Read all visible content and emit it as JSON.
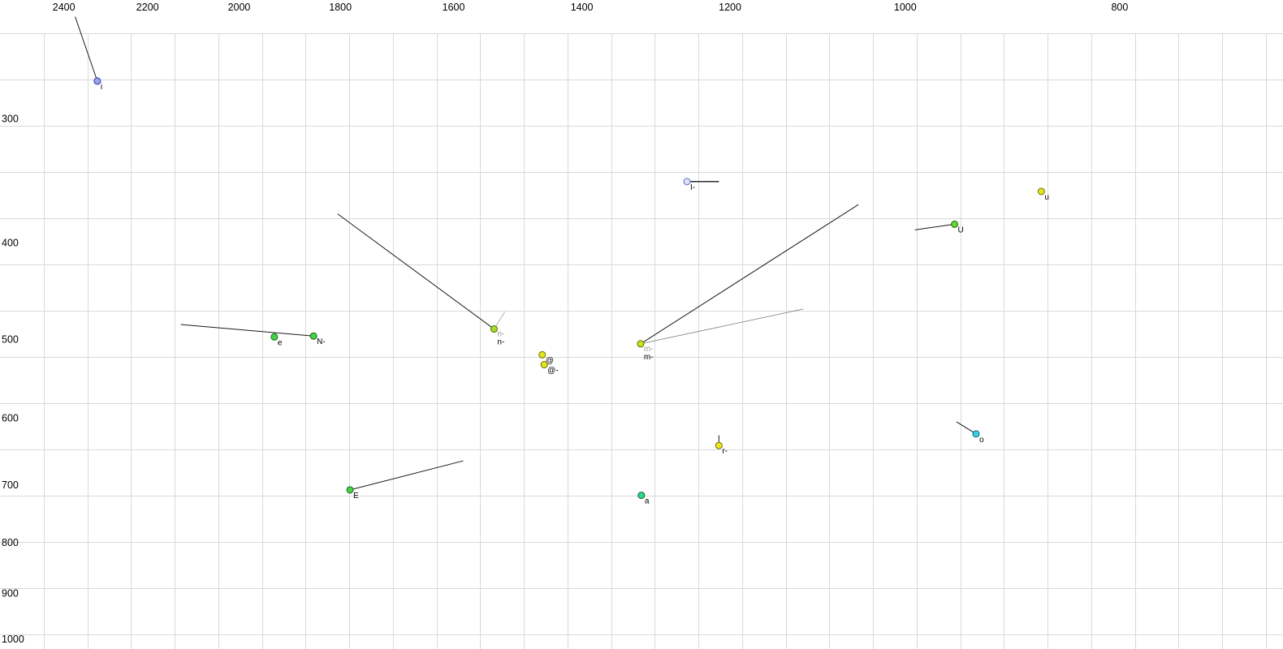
{
  "chart_data": {
    "type": "scatter",
    "title": "",
    "xlabel": "",
    "ylabel": "",
    "legend": false,
    "grid": true,
    "axes": {
      "x_scale": "log",
      "x_reversed": true,
      "x_position": "top",
      "x_range": [
        2565,
        675
      ],
      "y_scale": "log",
      "y_position": "left",
      "y_range": [
        228,
        1023
      ]
    },
    "x_ticks": [
      2400,
      2200,
      2000,
      1800,
      1600,
      1400,
      1200,
      1000,
      800
    ],
    "y_ticks": [
      300,
      400,
      500,
      600,
      700,
      800,
      900,
      1000
    ],
    "points": [
      {
        "label": "i",
        "f2": 2318,
        "f1": 275,
        "fill": "#9aa6ee",
        "stroke": "#2a35a0"
      },
      {
        "label": "e",
        "f2": 1928,
        "f1": 497,
        "fill": "#44d444",
        "stroke": "#17641f"
      },
      {
        "label": "N-",
        "f2": 1851,
        "f1": 496,
        "fill": "#44d444",
        "stroke": "#17641f"
      },
      {
        "label": "E",
        "f2": 1782,
        "f1": 708,
        "fill": "#44d444",
        "stroke": "#17641f"
      },
      {
        "label": "n-",
        "f2": 1534,
        "f1": 488,
        "fill": "#a6dc28",
        "stroke": "#4e6e10",
        "ghost": "n-"
      },
      {
        "label": "@",
        "f2": 1459,
        "f1": 518,
        "fill": "#e4e41c",
        "stroke": "#6e6e0c"
      },
      {
        "label": "@-",
        "f2": 1456,
        "f1": 530,
        "fill": "#e4e41c",
        "stroke": "#6e6e0c"
      },
      {
        "label": "m-",
        "f2": 1317,
        "f1": 505,
        "fill": "#cfe018",
        "stroke": "#5e680a",
        "ghost": "m-"
      },
      {
        "label": "I-",
        "f2": 1255,
        "f1": 347,
        "fill": "#dfe3f8",
        "stroke": "#6470c8"
      },
      {
        "label": "a",
        "f2": 1316,
        "f1": 717,
        "fill": "#2fd689",
        "stroke": "#0e5e3a"
      },
      {
        "label": "r-",
        "f2": 1214,
        "f1": 639,
        "fill": "#efe323",
        "stroke": "#6e6e0c"
      },
      {
        "label": "U",
        "f2": 950,
        "f1": 383,
        "fill": "#62d82e",
        "stroke": "#2a6a12"
      },
      {
        "label": "u",
        "f2": 868,
        "f1": 355,
        "fill": "#e4e41c",
        "stroke": "#6e6e0c"
      },
      {
        "label": "o",
        "f2": 929,
        "f1": 622,
        "fill": "#3ecfe0",
        "stroke": "#0f6a78"
      }
    ],
    "vectors": [
      {
        "point": "i",
        "from": [
          2372,
          237
        ],
        "to": [
          2318,
          275
        ],
        "color": "#1a1a1a",
        "width": 1
      },
      {
        "point": "N-",
        "from": [
          2125,
          483
        ],
        "to": [
          1851,
          496
        ],
        "color": "#1a1a1a",
        "width": 1
      },
      {
        "point": "n-",
        "from": [
          1805,
          374
        ],
        "to": [
          1534,
          488
        ],
        "color": "#1a1a1a",
        "width": 1
      },
      {
        "point": "n-ghost",
        "from": [
          1534,
          488
        ],
        "to": [
          1517,
          469
        ],
        "color": "#b0b0b0",
        "width": 1
      },
      {
        "point": "E",
        "from": [
          1782,
          708
        ],
        "to": [
          1584,
          662
        ],
        "color": "#1a1a1a",
        "width": 1
      },
      {
        "point": "m-",
        "from": [
          1317,
          505
        ],
        "to": [
          1050,
          366
        ],
        "color": "#1a1a1a",
        "width": 1
      },
      {
        "point": "m-ghost",
        "from": [
          1317,
          505
        ],
        "to": [
          1112,
          466
        ],
        "color": "#7d7d7d",
        "width": 0.8
      },
      {
        "point": "I-",
        "from": [
          1255,
          347
        ],
        "to": [
          1214,
          347
        ],
        "color": "#1a1a1a",
        "width": 1.4
      },
      {
        "point": "r-",
        "from": [
          1214,
          624
        ],
        "to": [
          1214,
          639
        ],
        "color": "#1a1a1a",
        "width": 1
      },
      {
        "point": "U",
        "from": [
          990,
          388
        ],
        "to": [
          950,
          383
        ],
        "color": "#1a1a1a",
        "width": 1
      },
      {
        "point": "o",
        "from": [
          948,
          605
        ],
        "to": [
          929,
          622
        ],
        "color": "#1a1a1a",
        "width": 1
      }
    ],
    "style": {
      "grid_color": "#d9d9d9",
      "tick_label_color": "#000000",
      "point_label_color": "#000000",
      "ghost_label_color": "#9a9a9a",
      "point_radius": 4
    }
  }
}
